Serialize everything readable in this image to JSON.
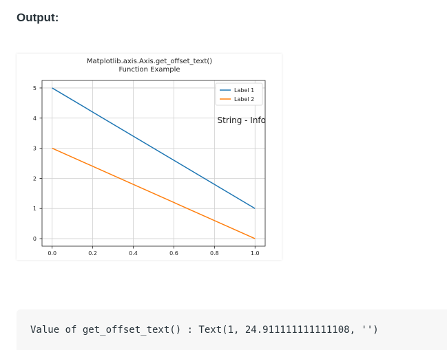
{
  "heading": "Output:",
  "chart_data": {
    "type": "line",
    "title": [
      "Matplotlib.axis.Axis.get_offset_text()",
      "Function Example"
    ],
    "x": [
      0.0,
      1.0
    ],
    "series": [
      {
        "name": "Label 1",
        "values": [
          5,
          1
        ],
        "color": "#1f77b4"
      },
      {
        "name": "Label 2",
        "values": [
          3,
          0
        ],
        "color": "#ff7f0e"
      }
    ],
    "xlim": [
      -0.05,
      1.05
    ],
    "ylim": [
      -0.25,
      5.25
    ],
    "xticks": [
      0.0,
      0.2,
      0.4,
      0.6,
      0.8,
      1.0
    ],
    "xtick_labels": [
      "0.0",
      "0.2",
      "0.4",
      "0.6",
      "0.8",
      "1.0"
    ],
    "yticks": [
      0,
      1,
      2,
      3,
      4,
      5
    ],
    "ytick_labels": [
      "0",
      "1",
      "2",
      "3",
      "4",
      "5"
    ],
    "grid": true,
    "legend": "upper right",
    "annotation": "String - Info"
  },
  "output": {
    "code_line": "Value of get_offset_text() : Text(1, 24.911111111111108, '')"
  }
}
